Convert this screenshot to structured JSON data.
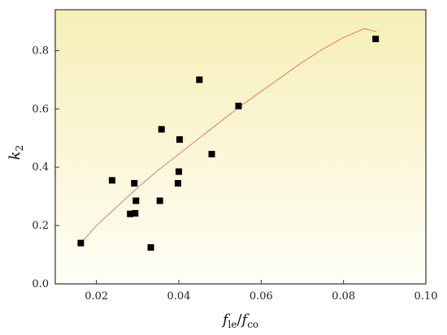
{
  "chart_data": {
    "type": "scatter",
    "title": "",
    "xlabel": {
      "main": "f",
      "sub": "le",
      "sep": "/",
      "main2": "f",
      "sub2": "co"
    },
    "ylabel": {
      "main": "k",
      "sub": "2"
    },
    "xlim": [
      0.01,
      0.1
    ],
    "ylim": [
      0.0,
      0.94
    ],
    "xticks": [
      0.02,
      0.04,
      0.06,
      0.08,
      0.1
    ],
    "xtick_labels": [
      "0.02",
      "0.04",
      "0.06",
      "0.08",
      "0.10"
    ],
    "yticks": [
      0.0,
      0.2,
      0.4,
      0.6,
      0.8
    ],
    "ytick_labels": [
      "0.0",
      "0.2",
      "0.4",
      "0.6",
      "0.8"
    ],
    "grid": false,
    "background_gradient": [
      "#f6efb6",
      "#fffef6"
    ],
    "points": [
      {
        "x": 0.0162,
        "y": 0.14
      },
      {
        "x": 0.0238,
        "y": 0.355
      },
      {
        "x": 0.0282,
        "y": 0.24
      },
      {
        "x": 0.0292,
        "y": 0.345
      },
      {
        "x": 0.0294,
        "y": 0.242
      },
      {
        "x": 0.0296,
        "y": 0.285
      },
      {
        "x": 0.0332,
        "y": 0.125
      },
      {
        "x": 0.0354,
        "y": 0.285
      },
      {
        "x": 0.0358,
        "y": 0.53
      },
      {
        "x": 0.0398,
        "y": 0.345
      },
      {
        "x": 0.04,
        "y": 0.385
      },
      {
        "x": 0.0402,
        "y": 0.495
      },
      {
        "x": 0.045,
        "y": 0.7
      },
      {
        "x": 0.048,
        "y": 0.445
      },
      {
        "x": 0.0545,
        "y": 0.61
      },
      {
        "x": 0.0878,
        "y": 0.84
      }
    ],
    "fit_curve": {
      "color": "#e8796f",
      "x": [
        0.0162,
        0.02,
        0.025,
        0.03,
        0.035,
        0.04,
        0.045,
        0.05,
        0.055,
        0.06,
        0.065,
        0.07,
        0.075,
        0.08,
        0.085,
        0.088
      ],
      "y": [
        0.14,
        0.2,
        0.265,
        0.33,
        0.39,
        0.445,
        0.5,
        0.555,
        0.61,
        0.66,
        0.71,
        0.76,
        0.805,
        0.845,
        0.875,
        0.865
      ]
    },
    "marker_color": "#000000"
  }
}
